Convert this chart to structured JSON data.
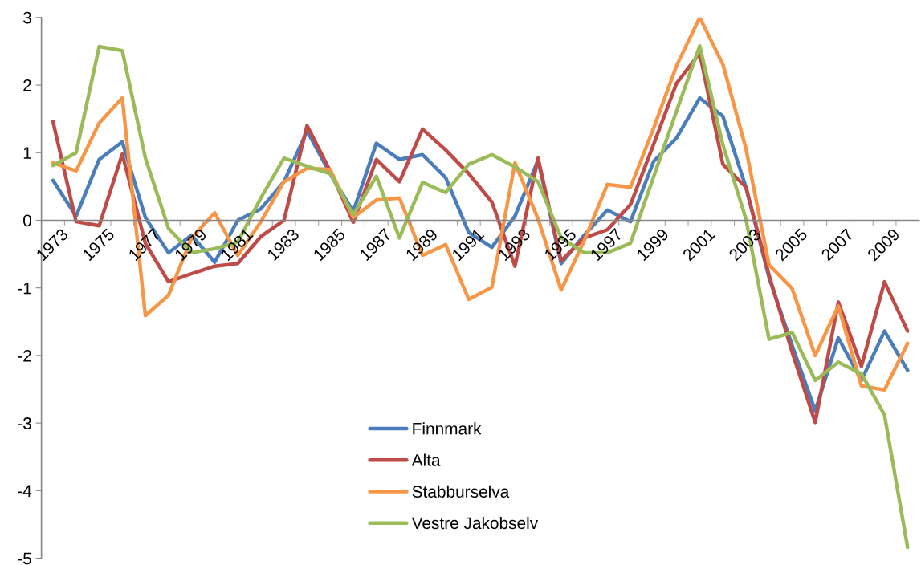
{
  "chart_data": {
    "type": "line",
    "categories": [
      "1973",
      null,
      "1975",
      null,
      "1977",
      null,
      "1979",
      null,
      "1981",
      null,
      "1983",
      null,
      "1985",
      null,
      "1987",
      null,
      "1989",
      null,
      "1991",
      null,
      "1993",
      null,
      "1995",
      null,
      "1997",
      null,
      "1999",
      null,
      "2001",
      null,
      "2003",
      null,
      "2005",
      null,
      "2007",
      null,
      "2009",
      null
    ],
    "series": [
      {
        "name": "Finnmark",
        "color": "#4a7ebb",
        "values": [
          0.59,
          0.06,
          0.9,
          1.16,
          0.04,
          -0.48,
          -0.22,
          -0.62,
          0.0,
          0.17,
          0.57,
          1.32,
          0.69,
          0.13,
          1.14,
          0.9,
          0.97,
          0.63,
          -0.18,
          -0.4,
          0.06,
          0.89,
          -0.64,
          -0.22,
          0.15,
          -0.02,
          0.87,
          1.22,
          1.81,
          1.54,
          0.49,
          -0.85,
          -1.85,
          -2.82,
          -1.74,
          -2.37,
          -1.64,
          -2.22
        ]
      },
      {
        "name": "Alta",
        "color": "#be4b48",
        "values": [
          1.46,
          -0.02,
          -0.08,
          0.98,
          -0.34,
          -0.91,
          -0.79,
          -0.68,
          -0.64,
          -0.24,
          0.0,
          1.4,
          0.73,
          -0.03,
          0.9,
          0.57,
          1.35,
          1.04,
          0.69,
          0.27,
          -0.68,
          0.92,
          -0.6,
          -0.26,
          -0.14,
          0.23,
          1.12,
          2.03,
          2.47,
          0.83,
          0.49,
          -0.81,
          -1.95,
          -2.99,
          -1.21,
          -2.16,
          -0.91,
          -1.64
        ]
      },
      {
        "name": "Stabburselva",
        "color": "#f79646",
        "values": [
          0.85,
          0.73,
          1.44,
          1.81,
          -1.41,
          -1.11,
          -0.26,
          0.11,
          -0.52,
          -0.02,
          0.57,
          0.77,
          0.75,
          0.04,
          0.3,
          0.33,
          -0.52,
          -0.36,
          -1.17,
          -0.99,
          0.85,
          0.02,
          -1.03,
          -0.3,
          0.53,
          0.49,
          1.36,
          2.29,
          3.0,
          2.31,
          1.06,
          -0.66,
          -1.01,
          -2.0,
          -1.27,
          -2.45,
          -2.51,
          -1.82
        ]
      },
      {
        "name": "Vestre Jakobselv",
        "color": "#9bbb59",
        "values": [
          0.81,
          1.0,
          2.57,
          2.51,
          0.92,
          -0.12,
          -0.48,
          -0.42,
          -0.32,
          0.33,
          0.92,
          0.8,
          0.69,
          0.08,
          0.65,
          -0.26,
          0.56,
          0.41,
          0.83,
          0.97,
          0.79,
          0.57,
          -0.26,
          -0.48,
          -0.48,
          -0.34,
          0.64,
          1.62,
          2.58,
          1.12,
          0.02,
          -1.76,
          -1.66,
          -2.37,
          -2.1,
          -2.27,
          -2.88,
          -4.84
        ]
      }
    ],
    "ylim": [
      -5,
      3
    ],
    "yticks": [
      -5,
      -4,
      -3,
      -2,
      -1,
      0,
      1,
      2,
      3
    ],
    "grid": false,
    "legend": "bottom",
    "marker": "none",
    "line_style": "solid"
  }
}
